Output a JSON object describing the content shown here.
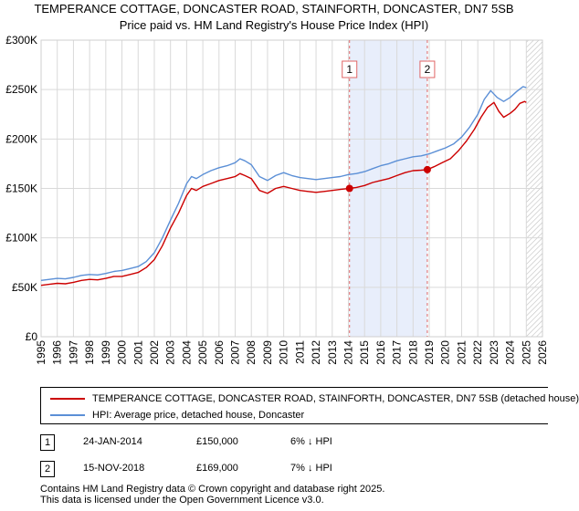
{
  "chart_data": {
    "type": "line",
    "title": "TEMPERANCE COTTAGE, DONCASTER ROAD, STAINFORTH, DONCASTER, DN7 5SB",
    "subtitle": "Price paid vs. HM Land Registry's House Price Index (HPI)",
    "xlim": [
      1995,
      2026
    ],
    "ylim": [
      0,
      300000
    ],
    "x_ticks": [
      "1995",
      "1996",
      "1997",
      "1998",
      "1999",
      "2000",
      "2001",
      "2002",
      "2003",
      "2004",
      "2005",
      "2006",
      "2007",
      "2008",
      "2009",
      "2010",
      "2011",
      "2012",
      "2013",
      "2014",
      "2015",
      "2016",
      "2017",
      "2018",
      "2019",
      "2020",
      "2021",
      "2022",
      "2023",
      "2024",
      "2025",
      "2026"
    ],
    "y_ticks": [
      {
        "value": 0,
        "label": "£0"
      },
      {
        "value": 50000,
        "label": "£50K"
      },
      {
        "value": 100000,
        "label": "£100K"
      },
      {
        "value": 150000,
        "label": "£150K"
      },
      {
        "value": 200000,
        "label": "£200K"
      },
      {
        "value": 250000,
        "label": "£250K"
      },
      {
        "value": 300000,
        "label": "£300K"
      }
    ],
    "grid": true,
    "shaded_range": [
      2014.07,
      2018.88
    ],
    "future_hatch_from": 2025.0,
    "series": [
      {
        "name": "TEMPERANCE COTTAGE, DONCASTER ROAD, STAINFORTH, DONCASTER, DN7 5SB (detached house)",
        "color": "#cc0000",
        "x": [
          1995.0,
          1995.5,
          1996.0,
          1996.5,
          1997.0,
          1997.5,
          1998.0,
          1998.5,
          1999.0,
          1999.5,
          2000.0,
          2000.5,
          2001.0,
          2001.5,
          2002.0,
          2002.5,
          2003.0,
          2003.5,
          2004.0,
          2004.3,
          2004.6,
          2005.0,
          2005.5,
          2006.0,
          2006.5,
          2007.0,
          2007.3,
          2007.6,
          2008.0,
          2008.5,
          2009.0,
          2009.5,
          2010.0,
          2010.5,
          2011.0,
          2011.5,
          2012.0,
          2012.5,
          2013.0,
          2013.5,
          2014.07,
          2014.5,
          2015.0,
          2015.5,
          2016.0,
          2016.5,
          2017.0,
          2017.5,
          2018.0,
          2018.5,
          2018.88,
          2019.3,
          2019.8,
          2020.3,
          2020.8,
          2021.3,
          2021.8,
          2022.2,
          2022.6,
          2023.0,
          2023.3,
          2023.6,
          2024.0,
          2024.3,
          2024.6,
          2024.9,
          2025.0
        ],
        "values": [
          52000,
          53000,
          54000,
          53500,
          55000,
          57000,
          58000,
          57500,
          59000,
          61000,
          61000,
          63000,
          65000,
          70000,
          78000,
          92000,
          110000,
          125000,
          143000,
          150000,
          148000,
          152000,
          155000,
          158000,
          160000,
          162000,
          165000,
          163000,
          160000,
          148000,
          145000,
          150000,
          152000,
          150000,
          148000,
          147000,
          146000,
          147000,
          148000,
          149000,
          150000,
          151000,
          153000,
          156000,
          158000,
          160000,
          163000,
          166000,
          168000,
          168500,
          169000,
          172000,
          176000,
          180000,
          188000,
          198000,
          210000,
          222000,
          232000,
          237000,
          228000,
          222000,
          226000,
          230000,
          236000,
          238000,
          237000
        ],
        "markers": [
          0,
          1
        ],
        "marker_x": [
          2014.07,
          2018.88
        ],
        "marker_y": [
          150000,
          169000
        ]
      },
      {
        "name": "HPI: Average price, detached house, Doncaster",
        "color": "#5b8fd6",
        "x": [
          1995.0,
          1995.5,
          1996.0,
          1996.5,
          1997.0,
          1997.5,
          1998.0,
          1998.5,
          1999.0,
          1999.5,
          2000.0,
          2000.5,
          2001.0,
          2001.5,
          2002.0,
          2002.5,
          2003.0,
          2003.5,
          2004.0,
          2004.3,
          2004.6,
          2005.0,
          2005.5,
          2006.0,
          2006.5,
          2007.0,
          2007.3,
          2007.6,
          2008.0,
          2008.5,
          2009.0,
          2009.5,
          2010.0,
          2010.5,
          2011.0,
          2011.5,
          2012.0,
          2012.5,
          2013.0,
          2013.5,
          2014.0,
          2014.5,
          2015.0,
          2015.5,
          2016.0,
          2016.5,
          2017.0,
          2017.5,
          2018.0,
          2018.5,
          2019.0,
          2019.5,
          2020.0,
          2020.5,
          2021.0,
          2021.5,
          2022.0,
          2022.4,
          2022.8,
          2023.2,
          2023.6,
          2024.0,
          2024.4,
          2024.8,
          2025.0
        ],
        "values": [
          57000,
          58000,
          59000,
          58500,
          60000,
          62000,
          63000,
          62500,
          64000,
          66000,
          67000,
          69000,
          71000,
          76000,
          85000,
          100000,
          118000,
          135000,
          155000,
          162000,
          160000,
          164000,
          168000,
          171000,
          173000,
          176000,
          180000,
          178000,
          174000,
          162000,
          158000,
          163000,
          166000,
          163000,
          161000,
          160000,
          159000,
          160000,
          161000,
          162000,
          164000,
          165000,
          167000,
          170000,
          173000,
          175000,
          178000,
          180000,
          182000,
          183000,
          185000,
          188000,
          191000,
          195000,
          202000,
          212000,
          225000,
          240000,
          249000,
          242000,
          238000,
          242000,
          248000,
          253000,
          252000
        ]
      }
    ],
    "annotations": [
      {
        "label": "1",
        "x": 2014.07
      },
      {
        "label": "2",
        "x": 2018.88
      }
    ]
  },
  "legend": {
    "property_label": "TEMPERANCE COTTAGE, DONCASTER ROAD, STAINFORTH, DONCASTER, DN7 5SB (detached house)",
    "hpi_label": "HPI: Average price, detached house, Doncaster"
  },
  "transactions": [
    {
      "num": "1",
      "date": "24-JAN-2014",
      "price": "£150,000",
      "hpi": "6% ↓ HPI"
    },
    {
      "num": "2",
      "date": "15-NOV-2018",
      "price": "£169,000",
      "hpi": "7% ↓ HPI"
    }
  ],
  "footer": {
    "line1": "Contains HM Land Registry data © Crown copyright and database right 2025.",
    "line2": "This data is licensed under the Open Government Licence v3.0."
  },
  "colors": {
    "property": "#cc0000",
    "hpi": "#5b8fd6",
    "shade": "#e8eefb",
    "grid": "#d9d9d9"
  }
}
